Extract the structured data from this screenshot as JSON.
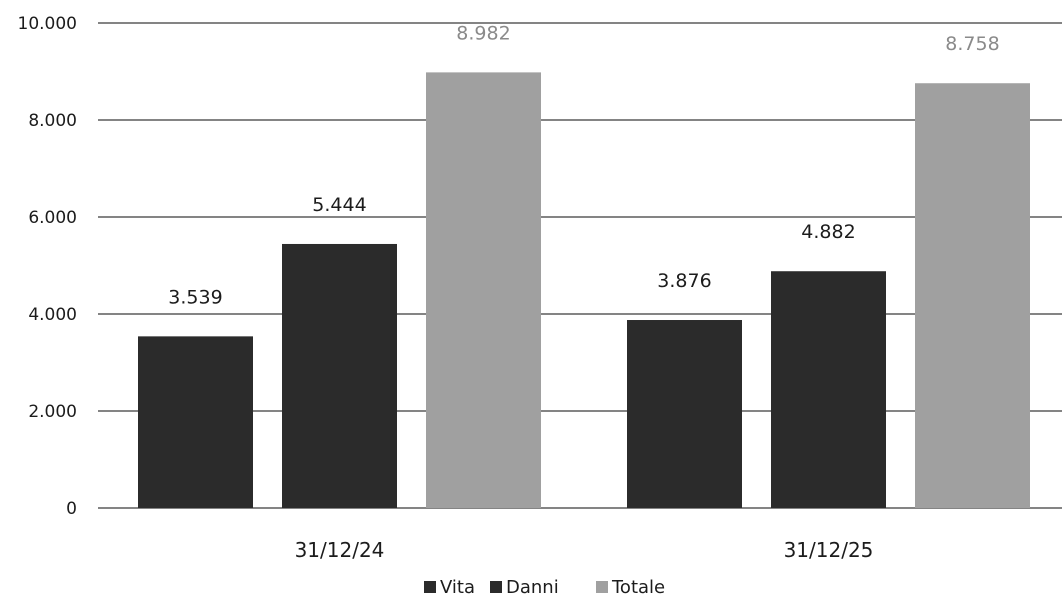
{
  "chart_data": {
    "type": "bar",
    "categories": [
      "31/12/24",
      "31/12/25"
    ],
    "series": [
      {
        "name": "Vita",
        "values": [
          3539,
          3876
        ],
        "labels": [
          "3.539",
          "3.876"
        ],
        "color": "#2b2b2b",
        "label_color": "#1c1c1c"
      },
      {
        "name": "Danni",
        "values": [
          5444,
          4882
        ],
        "labels": [
          "5.444",
          "4.882"
        ],
        "color": "#2b2b2b",
        "label_color": "#1c1c1c"
      },
      {
        "name": "Totale",
        "values": [
          8982,
          8758
        ],
        "labels": [
          "8.982",
          "8.758"
        ],
        "color": "#a0a0a0",
        "label_color": "#8a8a8a"
      }
    ],
    "ylim": [
      0,
      10000
    ],
    "yticks": [
      0,
      2000,
      4000,
      6000,
      8000,
      10000
    ],
    "ytick_labels": [
      "0",
      "2.000",
      "4.000",
      "6.000",
      "8.000",
      "10.000"
    ],
    "grid": true,
    "legend_position": "bottom-center",
    "gridline_color": "#3a3a3a"
  }
}
